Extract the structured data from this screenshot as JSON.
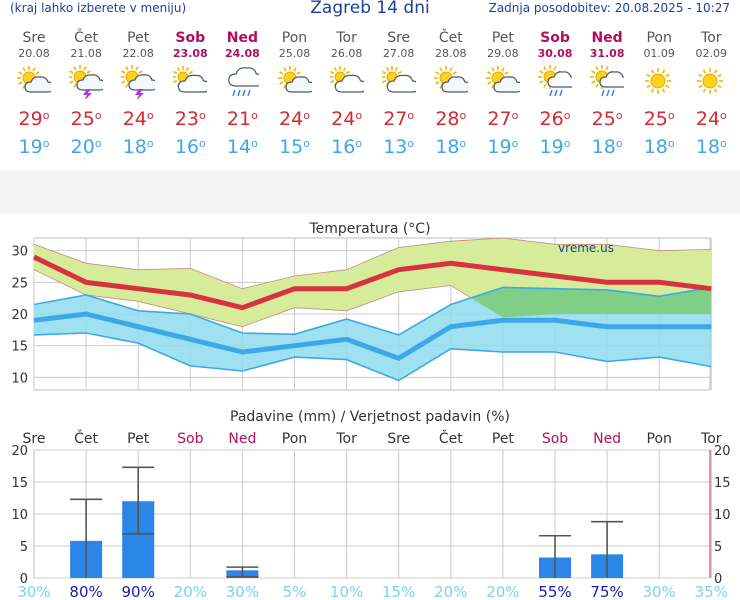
{
  "header": {
    "hint": "(kraj lahko izberete v meniju)",
    "title": "Zagreb 14 dni",
    "updated": "Zadnja posodobitev: 20.08.2025 - 10:27"
  },
  "days": [
    {
      "name": "Sre",
      "date": "20.08",
      "weekend": false,
      "icon": "partly-cloudy-icon",
      "tmax": 29,
      "tmin": 19
    },
    {
      "name": "Čet",
      "date": "21.08",
      "weekend": false,
      "icon": "thunderstorm-icon",
      "tmax": 25,
      "tmin": 20
    },
    {
      "name": "Pet",
      "date": "22.08",
      "weekend": false,
      "icon": "thunderstorm-icon",
      "tmax": 24,
      "tmin": 18
    },
    {
      "name": "Sob",
      "date": "23.08",
      "weekend": true,
      "icon": "mostly-cloudy-icon",
      "tmax": 23,
      "tmin": 16
    },
    {
      "name": "Ned",
      "date": "24.08",
      "weekend": true,
      "icon": "rain-icon",
      "tmax": 21,
      "tmin": 14
    },
    {
      "name": "Pon",
      "date": "25.08",
      "weekend": false,
      "icon": "partly-cloudy-icon",
      "tmax": 24,
      "tmin": 15
    },
    {
      "name": "Tor",
      "date": "26.08",
      "weekend": false,
      "icon": "mostly-cloudy-icon",
      "tmax": 24,
      "tmin": 16
    },
    {
      "name": "Sre",
      "date": "27.08",
      "weekend": false,
      "icon": "mostly-cloudy-icon",
      "tmax": 27,
      "tmin": 13
    },
    {
      "name": "Čet",
      "date": "28.08",
      "weekend": false,
      "icon": "partly-cloudy-icon",
      "tmax": 28,
      "tmin": 18
    },
    {
      "name": "Pet",
      "date": "29.08",
      "weekend": false,
      "icon": "partly-cloudy-icon",
      "tmax": 27,
      "tmin": 19
    },
    {
      "name": "Sob",
      "date": "30.08",
      "weekend": true,
      "icon": "sun-shower-icon",
      "tmax": 26,
      "tmin": 19
    },
    {
      "name": "Ned",
      "date": "31.08",
      "weekend": true,
      "icon": "sun-shower-icon",
      "tmax": 25,
      "tmin": 18
    },
    {
      "name": "Pon",
      "date": "01.09",
      "weekend": false,
      "icon": "sun-icon",
      "tmax": 25,
      "tmin": 18
    },
    {
      "name": "Tor",
      "date": "02.09",
      "weekend": false,
      "icon": "sun-icon",
      "tmax": 24,
      "tmin": 18
    }
  ],
  "colors": {
    "max_line": "#d8333c",
    "min_line": "#3da8e8",
    "max_band": "#d6ec9a",
    "min_band": "#8fdcef",
    "overlap_band": "#7fcf86",
    "precip_bar": "#2b86e8",
    "weekend": "#b0105a",
    "prob_high": "#1a1aa8",
    "prob_low": "#7fd0f0"
  },
  "chart_data": [
    {
      "type": "line",
      "title": "Temperatura (°C)",
      "watermark": "vreme.us",
      "ylim": [
        8,
        32
      ],
      "yticks": [
        10,
        15,
        20,
        25,
        30
      ],
      "grid": true,
      "categories": [
        "Sre",
        "Čet",
        "Pet",
        "Sob",
        "Ned",
        "Pon",
        "Tor",
        "Sre",
        "Čet",
        "Pet",
        "Sob",
        "Ned",
        "Pon",
        "Tor"
      ],
      "series": [
        {
          "name": "max",
          "values": [
            29,
            25,
            24,
            23,
            21,
            24,
            24,
            27,
            28,
            27,
            26,
            25,
            25,
            24
          ]
        },
        {
          "name": "max_upper",
          "values": [
            31,
            28,
            27,
            27.2,
            24,
            26,
            27,
            30.5,
            31.5,
            32,
            31,
            31,
            30,
            30.2
          ]
        },
        {
          "name": "max_lower",
          "values": [
            27,
            23,
            22,
            20,
            18,
            21,
            20.5,
            23.5,
            24.5,
            19.5,
            20,
            20,
            20,
            20
          ]
        },
        {
          "name": "min",
          "values": [
            19,
            20,
            18,
            16,
            14,
            15,
            16,
            13,
            18,
            19,
            19,
            18,
            18,
            18
          ]
        },
        {
          "name": "min_upper",
          "values": [
            21.5,
            23,
            20.5,
            20,
            17,
            16.8,
            19.2,
            16.7,
            21.5,
            24.2,
            24,
            23.8,
            22.8,
            24.2
          ]
        },
        {
          "name": "min_lower",
          "values": [
            16.7,
            17,
            15.4,
            11.8,
            11,
            13.2,
            12.8,
            9.5,
            14.5,
            14,
            14,
            12.5,
            13.2,
            11.7
          ]
        }
      ]
    },
    {
      "type": "bar",
      "title": "Padavine (mm) / Verjetnost padavin (%)",
      "ylim": [
        0,
        20
      ],
      "yticks": [
        0,
        5,
        10,
        15,
        20
      ],
      "grid": true,
      "categories": [
        "Sre",
        "Čet",
        "Pet",
        "Sob",
        "Ned",
        "Pon",
        "Tor",
        "Sre",
        "Čet",
        "Pet",
        "Sob",
        "Ned",
        "Pon",
        "Tor"
      ],
      "values": [
        0,
        5.8,
        12,
        0,
        1.2,
        0,
        0,
        0,
        0,
        0,
        3.2,
        3.7,
        0,
        0
      ],
      "error_low": [
        0,
        0,
        6.9,
        0,
        0.2,
        0,
        0,
        0,
        0,
        0,
        0,
        0,
        0,
        0
      ],
      "error_high": [
        0,
        12.3,
        17.3,
        0,
        1.7,
        0,
        0,
        0,
        0,
        0,
        6.6,
        8.8,
        0,
        0
      ],
      "probability": [
        30,
        80,
        90,
        20,
        30,
        5,
        10,
        15,
        20,
        20,
        55,
        75,
        30,
        35
      ]
    }
  ]
}
